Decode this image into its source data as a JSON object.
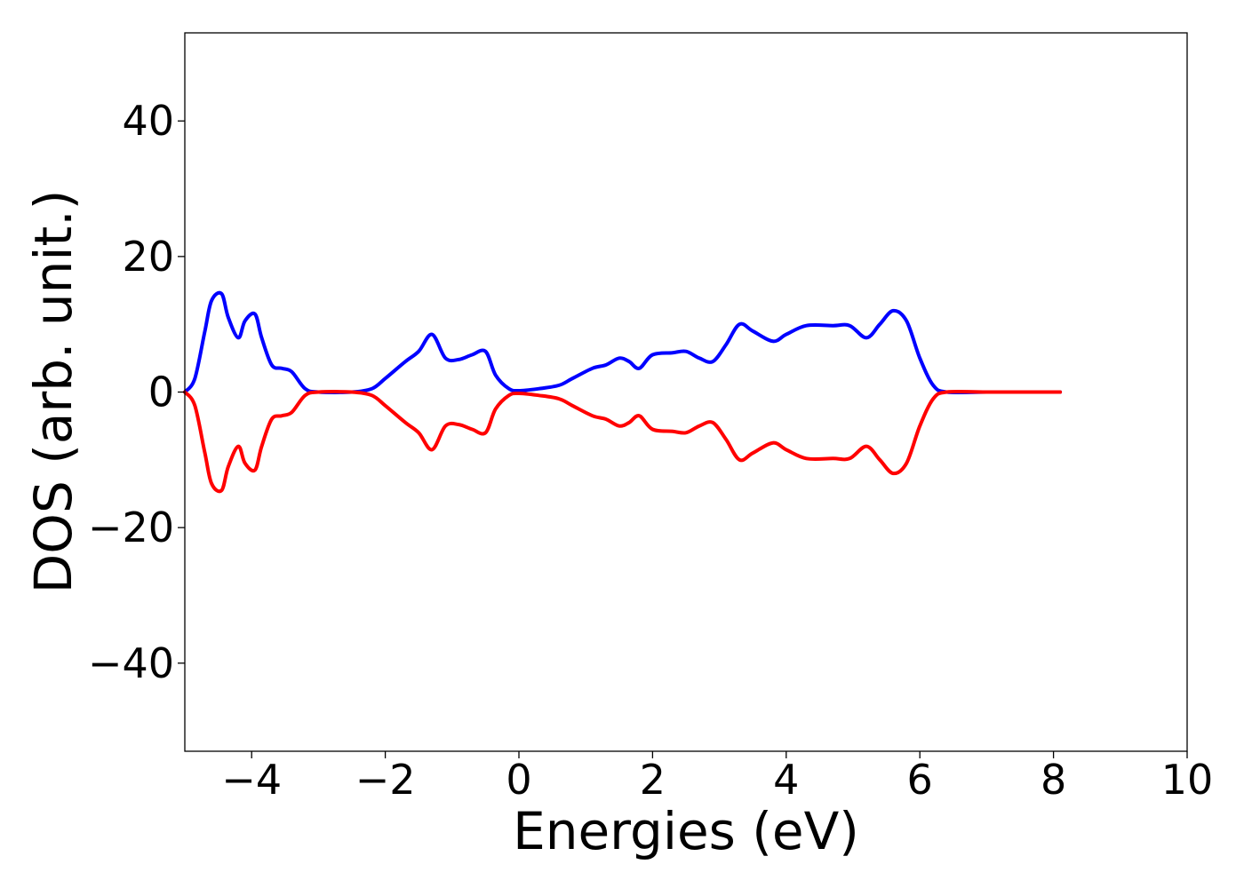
{
  "chart_data": {
    "type": "line",
    "title": "",
    "xlabel": "Energies (eV)",
    "ylabel": "DOS (arb. unit.)",
    "xlim": [
      -5,
      10
    ],
    "ylim": [
      -53,
      53
    ],
    "xticks": [
      -4,
      -2,
      0,
      2,
      4,
      6,
      8,
      10
    ],
    "xtick_labels": [
      "−4",
      "−2",
      "0",
      "2",
      "4",
      "6",
      "8",
      "10"
    ],
    "yticks": [
      -40,
      -20,
      0,
      20,
      40
    ],
    "ytick_labels": [
      "−40",
      "−20",
      "0",
      "20",
      "40"
    ],
    "grid": false,
    "legend": "none",
    "series": [
      {
        "color": "#0000ff",
        "x": [
          -5.0,
          -4.85,
          -4.7,
          -4.6,
          -4.45,
          -4.35,
          -4.2,
          -4.1,
          -3.95,
          -3.85,
          -3.7,
          -3.55,
          -3.4,
          -3.2,
          -3.0,
          -2.5,
          -2.2,
          -2.0,
          -1.7,
          -1.5,
          -1.3,
          -1.1,
          -0.9,
          -0.7,
          -0.5,
          -0.35,
          -0.15,
          0.0,
          0.3,
          0.6,
          0.8,
          1.1,
          1.3,
          1.5,
          1.65,
          1.8,
          2.0,
          2.3,
          2.5,
          2.7,
          2.9,
          3.1,
          3.3,
          3.5,
          3.8,
          4.0,
          4.3,
          4.7,
          4.95,
          5.2,
          5.4,
          5.6,
          5.8,
          6.0,
          6.2,
          6.4,
          7.0,
          8.1
        ],
        "y": [
          0.0,
          2.0,
          9.0,
          13.5,
          14.5,
          11.0,
          8.0,
          10.5,
          11.5,
          8.0,
          4.0,
          3.5,
          3.0,
          0.5,
          0.0,
          0.0,
          0.5,
          2.0,
          4.5,
          6.0,
          8.5,
          5.0,
          4.8,
          5.5,
          6.0,
          2.5,
          0.5,
          0.2,
          0.5,
          1.0,
          2.0,
          3.5,
          4.0,
          5.0,
          4.5,
          3.5,
          5.5,
          5.8,
          6.0,
          5.0,
          4.5,
          7.0,
          10.0,
          9.0,
          7.5,
          8.5,
          9.8,
          9.8,
          9.8,
          8.0,
          10.0,
          12.0,
          10.5,
          5.0,
          1.0,
          0.0,
          0.0,
          0.0
        ]
      },
      {
        "color": "#ff0000",
        "x": [
          -5.0,
          -4.85,
          -4.7,
          -4.6,
          -4.45,
          -4.35,
          -4.2,
          -4.1,
          -3.95,
          -3.85,
          -3.7,
          -3.55,
          -3.4,
          -3.2,
          -3.0,
          -2.5,
          -2.2,
          -2.0,
          -1.7,
          -1.5,
          -1.3,
          -1.1,
          -0.9,
          -0.7,
          -0.5,
          -0.35,
          -0.15,
          0.0,
          0.3,
          0.6,
          0.8,
          1.1,
          1.3,
          1.5,
          1.65,
          1.8,
          2.0,
          2.3,
          2.5,
          2.7,
          2.9,
          3.1,
          3.3,
          3.5,
          3.8,
          4.0,
          4.3,
          4.7,
          4.95,
          5.2,
          5.4,
          5.6,
          5.8,
          6.0,
          6.2,
          6.4,
          7.0,
          8.1
        ],
        "y": [
          0.0,
          -2.0,
          -9.0,
          -13.5,
          -14.5,
          -11.0,
          -8.0,
          -10.5,
          -11.5,
          -8.0,
          -4.0,
          -3.5,
          -3.0,
          -0.5,
          0.0,
          0.0,
          -0.5,
          -2.0,
          -4.5,
          -6.0,
          -8.5,
          -5.0,
          -4.8,
          -5.5,
          -6.0,
          -2.5,
          -0.5,
          -0.2,
          -0.5,
          -1.0,
          -2.0,
          -3.5,
          -4.0,
          -5.0,
          -4.5,
          -3.5,
          -5.5,
          -5.8,
          -6.0,
          -5.0,
          -4.5,
          -7.0,
          -10.0,
          -9.0,
          -7.5,
          -8.5,
          -9.8,
          -9.8,
          -9.8,
          -8.0,
          -10.0,
          -12.0,
          -10.5,
          -5.0,
          -1.0,
          0.0,
          0.0,
          0.0
        ]
      }
    ]
  }
}
